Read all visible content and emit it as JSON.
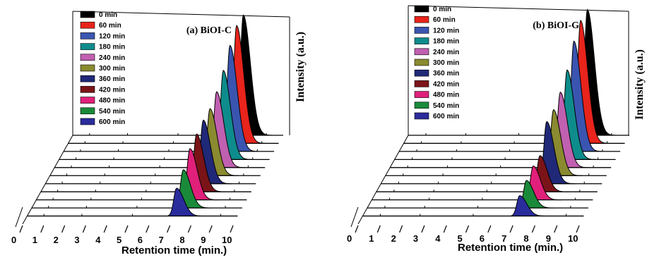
{
  "chart_data": [
    {
      "type": "line",
      "title": "(a) BiOI-C",
      "xlabel": "Retention time (min.)",
      "ylabel": "Intensity (a.u.)",
      "xlim": [
        0,
        10
      ],
      "xticks": [
        "0",
        "1",
        "2",
        "3",
        "4",
        "5",
        "6",
        "7",
        "8",
        "9",
        "10"
      ],
      "legend_position": "top-left",
      "series": [
        {
          "name": "0 min",
          "color": "#000000",
          "peak_x": 8.1,
          "peak_y": 1.0
        },
        {
          "name": "60 min",
          "color": "#e8241c",
          "peak_x": 8.0,
          "peak_y": 0.92
        },
        {
          "name": "120 min",
          "color": "#3a55b0",
          "peak_x": 7.9,
          "peak_y": 0.78
        },
        {
          "name": "180 min",
          "color": "#0e8c8c",
          "peak_x": 7.8,
          "peak_y": 0.62
        },
        {
          "name": "240 min",
          "color": "#c060b0",
          "peak_x": 7.7,
          "peak_y": 0.5
        },
        {
          "name": "300 min",
          "color": "#8a8a30",
          "peak_x": 7.6,
          "peak_y": 0.42
        },
        {
          "name": "360 min",
          "color": "#202878",
          "peak_x": 7.5,
          "peak_y": 0.38
        },
        {
          "name": "420 min",
          "color": "#7a1418",
          "peak_x": 7.4,
          "peak_y": 0.33
        },
        {
          "name": "480 min",
          "color": "#e0207a",
          "peak_x": 7.3,
          "peak_y": 0.28
        },
        {
          "name": "540 min",
          "color": "#1a8a3a",
          "peak_x": 7.2,
          "peak_y": 0.2
        },
        {
          "name": "600 min",
          "color": "#2a2c9c",
          "peak_x": 7.1,
          "peak_y": 0.14
        }
      ]
    },
    {
      "type": "line",
      "title": "(b) BiOI-G",
      "xlabel": "Retention time (min.)",
      "ylabel": "Intensity (a.u.)",
      "xlim": [
        0,
        10
      ],
      "xticks": [
        "0",
        "1",
        "2",
        "3",
        "4",
        "5",
        "6",
        "7",
        "8",
        "9",
        "10"
      ],
      "legend_position": "top-left",
      "series": [
        {
          "name": "0 min",
          "color": "#000000",
          "peak_x": 8.1,
          "peak_y": 1.0
        },
        {
          "name": "60 min",
          "color": "#e8241c",
          "peak_x": 8.0,
          "peak_y": 0.92
        },
        {
          "name": "120 min",
          "color": "#3a55b0",
          "peak_x": 7.9,
          "peak_y": 0.78
        },
        {
          "name": "180 min",
          "color": "#0e8c8c",
          "peak_x": 7.8,
          "peak_y": 0.6
        },
        {
          "name": "240 min",
          "color": "#c060b0",
          "peak_x": 7.7,
          "peak_y": 0.48
        },
        {
          "name": "300 min",
          "color": "#8a8a30",
          "peak_x": 7.6,
          "peak_y": 0.4
        },
        {
          "name": "360 min",
          "color": "#202878",
          "peak_x": 7.5,
          "peak_y": 0.36
        },
        {
          "name": "420 min",
          "color": "#7a1418",
          "peak_x": 7.4,
          "peak_y": 0.2
        },
        {
          "name": "480 min",
          "color": "#e0207a",
          "peak_x": 7.3,
          "peak_y": 0.18
        },
        {
          "name": "540 min",
          "color": "#1a8a3a",
          "peak_x": 7.2,
          "peak_y": 0.14
        },
        {
          "name": "600 min",
          "color": "#2a2c9c",
          "peak_x": 7.1,
          "peak_y": 0.1
        }
      ]
    }
  ]
}
